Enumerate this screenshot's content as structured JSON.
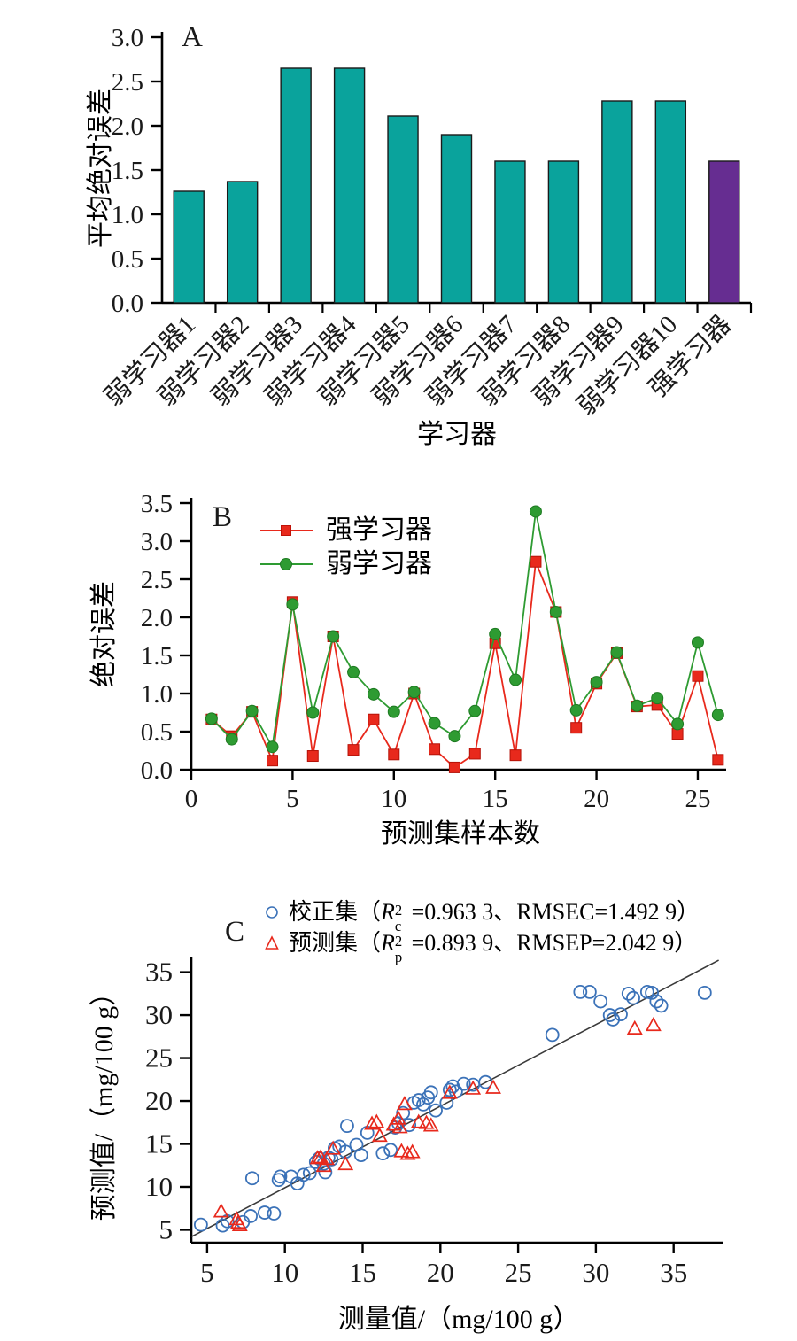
{
  "page": {
    "background": "#ffffff"
  },
  "chart_data": [
    {
      "type": "bar",
      "panel_label": "A",
      "xlabel": "学习器",
      "ylabel": "平均绝对误差",
      "categories": [
        "弱学习器1",
        "弱学习器2",
        "弱学习器3",
        "弱学习器4",
        "弱学习器5",
        "弱学习器6",
        "弱学习器7",
        "弱学习器8",
        "弱学习器9",
        "弱学习器10",
        "强学习器"
      ],
      "values": [
        1.26,
        1.37,
        2.65,
        2.65,
        2.11,
        1.9,
        1.6,
        1.6,
        2.28,
        2.28,
        1.6
      ],
      "bar_color_default": "#0AA39C",
      "bar_color_last": "#662D91",
      "bar_edge": "#1a1a1a",
      "ylim": [
        0,
        3.0
      ],
      "yticks": [
        0.0,
        0.5,
        1.0,
        1.5,
        2.0,
        2.5,
        3.0
      ],
      "grid": false
    },
    {
      "type": "line",
      "panel_label": "B",
      "xlabel": "预测集样本数",
      "ylabel": "绝对误差",
      "x": [
        1,
        2,
        3,
        4,
        5,
        6,
        7,
        8,
        9,
        10,
        11,
        12,
        13,
        14,
        15,
        16,
        17,
        18,
        19,
        20,
        21,
        22,
        23,
        24,
        25,
        26
      ],
      "series": [
        {
          "name": "强学习器",
          "color": "#E8291C",
          "marker": "square",
          "values": [
            0.66,
            0.44,
            0.76,
            0.12,
            2.2,
            0.18,
            1.75,
            0.26,
            0.66,
            0.2,
            1.0,
            0.27,
            0.03,
            0.21,
            1.66,
            0.19,
            2.73,
            2.07,
            0.55,
            1.13,
            1.53,
            0.83,
            0.85,
            0.47,
            1.23,
            0.13
          ]
        },
        {
          "name": "弱学习器",
          "color": "#2E9B32",
          "marker": "circle",
          "values": [
            0.67,
            0.4,
            0.77,
            0.3,
            2.17,
            0.75,
            1.75,
            1.28,
            0.99,
            0.76,
            1.02,
            0.61,
            0.44,
            0.77,
            1.78,
            1.18,
            3.39,
            2.07,
            0.78,
            1.15,
            1.54,
            0.84,
            0.94,
            0.6,
            1.67,
            0.72
          ]
        }
      ],
      "xlim": [
        0,
        26.4
      ],
      "ylim": [
        0,
        3.5
      ],
      "xticks": [
        0,
        5,
        10,
        15,
        20,
        25
      ],
      "yticks": [
        0.0,
        0.5,
        1.0,
        1.5,
        2.0,
        2.5,
        3.0,
        3.5
      ],
      "grid": false,
      "legend_position": "upper-left-inside"
    },
    {
      "type": "scatter",
      "panel_label": "C",
      "xlabel": "测量值/（mg/100 g）",
      "ylabel": "预测值/（mg/100 g）",
      "series": [
        {
          "name": "校正集",
          "marker": "circle",
          "color": "#3B72B8",
          "legend": {
            "open": "（",
            "rsym": "R",
            "sup": "2",
            "sub": "c",
            "tail": "=0.963 3、RMSEC=1.492 9）"
          },
          "points": [
            [
              4.6,
              5.6
            ],
            [
              6.0,
              5.5
            ],
            [
              6.3,
              6.0
            ],
            [
              7.3,
              5.9
            ],
            [
              7.8,
              6.6
            ],
            [
              8.7,
              7.0
            ],
            [
              9.3,
              6.9
            ],
            [
              7.9,
              11.0
            ],
            [
              9.6,
              10.8
            ],
            [
              9.7,
              11.2
            ],
            [
              10.4,
              11.2
            ],
            [
              10.8,
              10.4
            ],
            [
              11.2,
              11.4
            ],
            [
              11.6,
              11.6
            ],
            [
              12.0,
              12.9
            ],
            [
              12.2,
              13.3
            ],
            [
              12.5,
              12.7
            ],
            [
              12.6,
              11.7
            ],
            [
              12.8,
              13.4
            ],
            [
              13.0,
              13.2
            ],
            [
              13.2,
              14.5
            ],
            [
              13.5,
              14.7
            ],
            [
              13.9,
              14.1
            ],
            [
              14.0,
              17.1
            ],
            [
              14.6,
              14.9
            ],
            [
              14.9,
              13.7
            ],
            [
              15.3,
              16.3
            ],
            [
              16.3,
              13.9
            ],
            [
              16.8,
              14.3
            ],
            [
              17.1,
              16.9
            ],
            [
              17.3,
              17.4
            ],
            [
              17.6,
              18.6
            ],
            [
              18.0,
              17.2
            ],
            [
              18.3,
              19.8
            ],
            [
              18.6,
              20.1
            ],
            [
              18.9,
              19.6
            ],
            [
              19.2,
              20.4
            ],
            [
              19.4,
              21.0
            ],
            [
              19.7,
              18.9
            ],
            [
              20.4,
              19.8
            ],
            [
              20.6,
              21.3
            ],
            [
              20.8,
              21.7
            ],
            [
              21.0,
              21.1
            ],
            [
              21.5,
              22.0
            ],
            [
              22.1,
              21.9
            ],
            [
              22.9,
              22.2
            ],
            [
              27.2,
              27.7
            ],
            [
              29.0,
              32.7
            ],
            [
              29.6,
              32.7
            ],
            [
              30.3,
              31.6
            ],
            [
              30.9,
              30.0
            ],
            [
              31.1,
              29.5
            ],
            [
              31.6,
              30.1
            ],
            [
              32.1,
              32.5
            ],
            [
              32.4,
              32.0
            ],
            [
              33.3,
              32.7
            ],
            [
              33.6,
              32.6
            ],
            [
              33.9,
              31.6
            ],
            [
              34.2,
              31.1
            ],
            [
              37.0,
              32.6
            ]
          ]
        },
        {
          "name": "预测集",
          "marker": "triangle",
          "color": "#E8291C",
          "legend": {
            "open": "（",
            "rsym": "R",
            "sup": "2",
            "sub": "p",
            "tail": "=0.893 9、RMSEP=2.042 9）"
          },
          "points": [
            [
              5.9,
              7.1
            ],
            [
              6.9,
              6.2
            ],
            [
              7.0,
              5.8
            ],
            [
              7.1,
              5.5
            ],
            [
              12.1,
              13.3
            ],
            [
              12.3,
              13.4
            ],
            [
              12.5,
              12.4
            ],
            [
              12.7,
              13.2
            ],
            [
              13.1,
              14.4
            ],
            [
              13.9,
              12.6
            ],
            [
              15.6,
              17.3
            ],
            [
              15.9,
              17.5
            ],
            [
              16.1,
              15.9
            ],
            [
              17.0,
              17.2
            ],
            [
              17.3,
              17.9
            ],
            [
              17.4,
              16.9
            ],
            [
              17.5,
              14.1
            ],
            [
              17.9,
              13.8
            ],
            [
              18.2,
              14.0
            ],
            [
              17.7,
              19.6
            ],
            [
              18.6,
              17.5
            ],
            [
              19.1,
              17.4
            ],
            [
              19.4,
              17.1
            ],
            [
              20.6,
              20.9
            ],
            [
              22.1,
              21.4
            ],
            [
              23.4,
              21.5
            ],
            [
              32.5,
              28.4
            ],
            [
              33.7,
              28.8
            ]
          ]
        }
      ],
      "fit_line": {
        "x1": 4.0,
        "y1": 4.2,
        "x2": 37.9,
        "y2": 36.4,
        "color": "#3a3a3a"
      },
      "xlim": [
        3.98,
        38.15
      ],
      "ylim": [
        3.5,
        36.3
      ],
      "xticks": [
        5,
        10,
        15,
        20,
        25,
        30,
        35
      ],
      "yticks": [
        5,
        10,
        15,
        20,
        25,
        30,
        35
      ],
      "grid": false
    }
  ]
}
